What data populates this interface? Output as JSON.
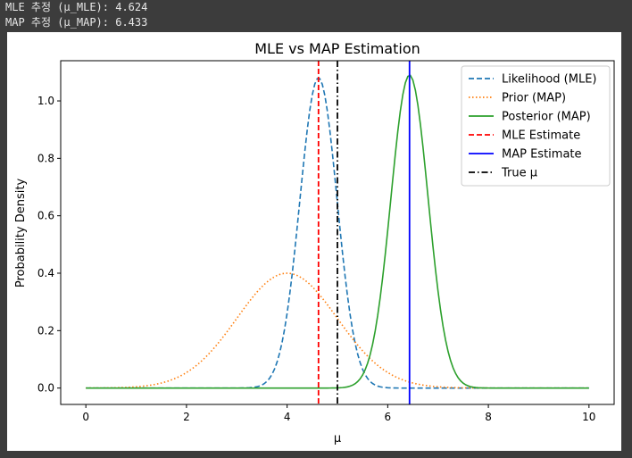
{
  "console": {
    "line1": "MLE 추정 (μ_MLE): 4.624",
    "line2": "MAP 추정 (μ_MAP): 6.433"
  },
  "chart_data": {
    "type": "line",
    "title": "MLE vs MAP Estimation",
    "xlabel": "μ",
    "ylabel": "Probability Density",
    "xlim": [
      -0.5,
      10.5
    ],
    "ylim": [
      -0.057,
      1.14
    ],
    "xticks": [
      0,
      2,
      4,
      6,
      8,
      10
    ],
    "yticks": [
      0.0,
      0.2,
      0.4,
      0.6,
      0.8,
      1.0
    ],
    "grid": false,
    "legend_position": "top-right",
    "series": [
      {
        "name": "Likelihood (MLE)",
        "kind": "gaussian",
        "mean": 4.624,
        "sd": 0.37,
        "peak": 1.08,
        "color": "#1f77b4",
        "dash": "dashed"
      },
      {
        "name": "Prior (MAP)",
        "kind": "gaussian",
        "mean": 4.0,
        "sd": 1.0,
        "peak": 0.4,
        "color": "#ff7f0e",
        "dash": "dotted"
      },
      {
        "name": "Posterior (MAP)",
        "kind": "gaussian",
        "mean": 6.433,
        "sd": 0.37,
        "peak": 1.09,
        "color": "#2ca02c",
        "dash": "solid"
      }
    ],
    "vlines": [
      {
        "name": "MLE Estimate",
        "x": 4.624,
        "color": "#ff0000",
        "dash": "dashed"
      },
      {
        "name": "MAP Estimate",
        "x": 6.433,
        "color": "#0000ff",
        "dash": "solid"
      },
      {
        "name": "True μ",
        "x": 5.0,
        "color": "#000000",
        "dash": "dashdot"
      }
    ]
  }
}
